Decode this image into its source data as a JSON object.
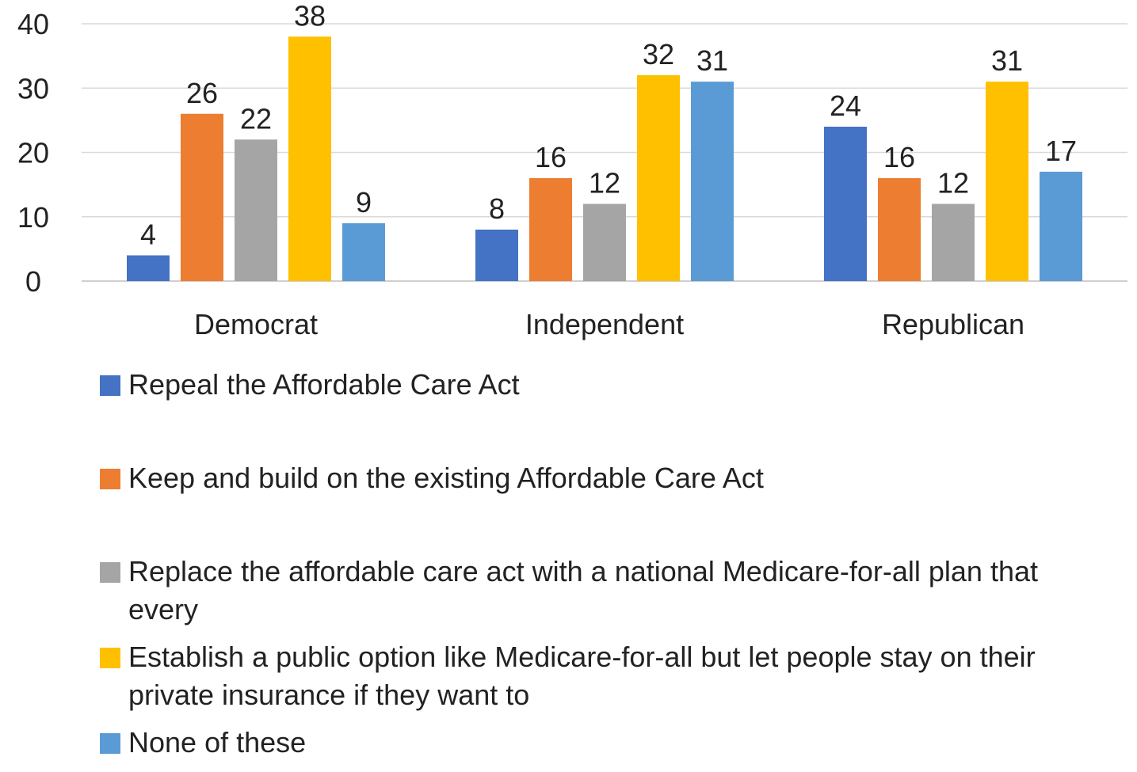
{
  "chart_data": {
    "type": "bar",
    "categories": [
      "Democrat",
      "Independent",
      "Republican"
    ],
    "series": [
      {
        "name": "Repeal the Affordable Care Act",
        "values": [
          4,
          8,
          24
        ],
        "color": "#4472C4"
      },
      {
        "name": "Keep and build on the existing Affordable Care Act",
        "values": [
          26,
          16,
          16
        ],
        "color": "#ED7D31"
      },
      {
        "name": "Replace the affordable care act with a national Medicare-for-all plan that every",
        "values": [
          22,
          12,
          12
        ],
        "color": "#A5A5A5"
      },
      {
        "name": "Establish a public option like Medicare-for-all but let people stay on their private insurance if they want to",
        "values": [
          38,
          32,
          31
        ],
        "color": "#FFC000"
      },
      {
        "name": "None of these",
        "values": [
          9,
          31,
          17
        ],
        "color": "#5B9BD5"
      }
    ],
    "y_ticks": [
      "0",
      "10",
      "20",
      "30",
      "40"
    ],
    "ylim": [
      0,
      40
    ],
    "grid": true,
    "legend_position": "bottom",
    "title": "",
    "xlabel": "",
    "ylabel": ""
  }
}
